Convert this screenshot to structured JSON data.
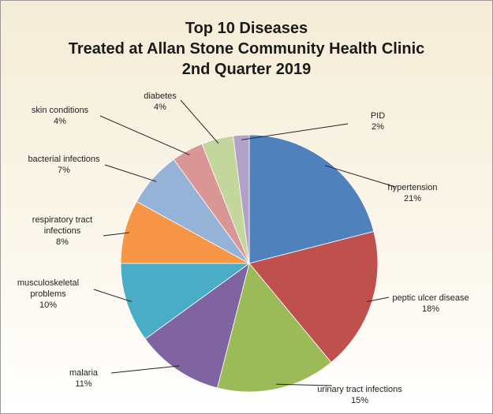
{
  "chart_data": {
    "type": "pie",
    "title": "Top 10 Diseases\nTreated at Allan Stone Community Health Clinic\n2nd Quarter 2019",
    "categories": [
      "hypertension",
      "peptic ulcer disease",
      "urinary tract infections",
      "malaria",
      "musculoskeletal problems",
      "respiratory tract infections",
      "bacterial infections",
      "skin conditions",
      "diabetes",
      "PID"
    ],
    "values": [
      21,
      18,
      15,
      11,
      10,
      8,
      7,
      4,
      4,
      2
    ],
    "value_labels": [
      "21%",
      "18%",
      "15%",
      "11%",
      "10%",
      "8%",
      "7%",
      "4%",
      "4%",
      "2%"
    ],
    "colors": [
      "#4f81bd",
      "#c0504d",
      "#9bbb59",
      "#8064a2",
      "#4bacc6",
      "#f79646",
      "#95b3d7",
      "#d99694",
      "#c3d69b",
      "#b3a2c7"
    ]
  }
}
